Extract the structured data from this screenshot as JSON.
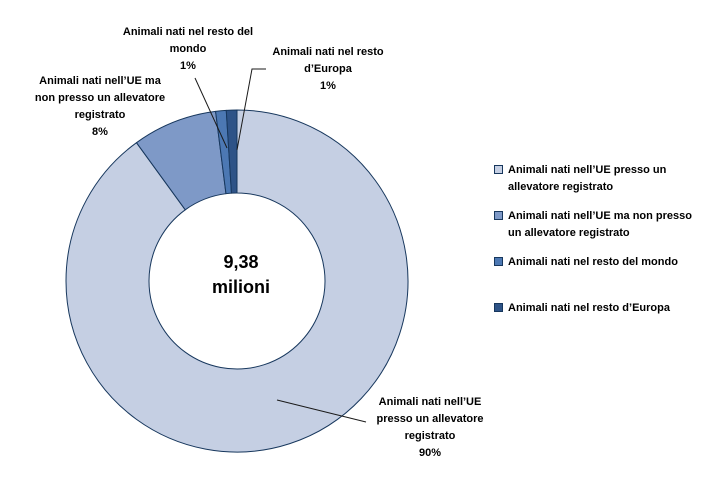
{
  "chart_data": {
    "type": "pie",
    "subtype": "donut",
    "title": "",
    "center_label": "9,38\nmilioni",
    "total": "9,38 milioni",
    "legend_position": "right",
    "grid": false,
    "stroke_color": "#17375D",
    "background_color": "#FFFFFF",
    "text_color": "#000000",
    "series": [
      {
        "label": "Animali nati nell’UE presso un allevatore registrato",
        "value_pct": 90,
        "color": "#C5CFE3",
        "legend_label": "Animali nati nell’UE presso un\nallevatore registrato",
        "callout": "Animali nati nell’UE\npresso un allevatore\nregistrato\n90%"
      },
      {
        "label": "Animali nati nell’UE ma non presso un allevatore registrato",
        "value_pct": 8,
        "color": "#7E99C7",
        "legend_label": "Animali nati nell’UE ma non presso\nun allevatore registrato",
        "callout": "Animali nati nell’UE ma\nnon presso un allevatore\nregistrato\n8%"
      },
      {
        "label": "Animali nati nel resto del mondo",
        "value_pct": 1,
        "color": "#4C78B3",
        "legend_label": "Animali nati nel resto del mondo",
        "callout": "Animali nati nel resto del\nmondo\n1%"
      },
      {
        "label": "Animali nati nel resto d’Europa",
        "value_pct": 1,
        "color": "#2E5387",
        "legend_label": "Animali nati nel resto d’Europa",
        "callout": "Animali nati nel resto\nd’Europa\n1%"
      }
    ]
  }
}
